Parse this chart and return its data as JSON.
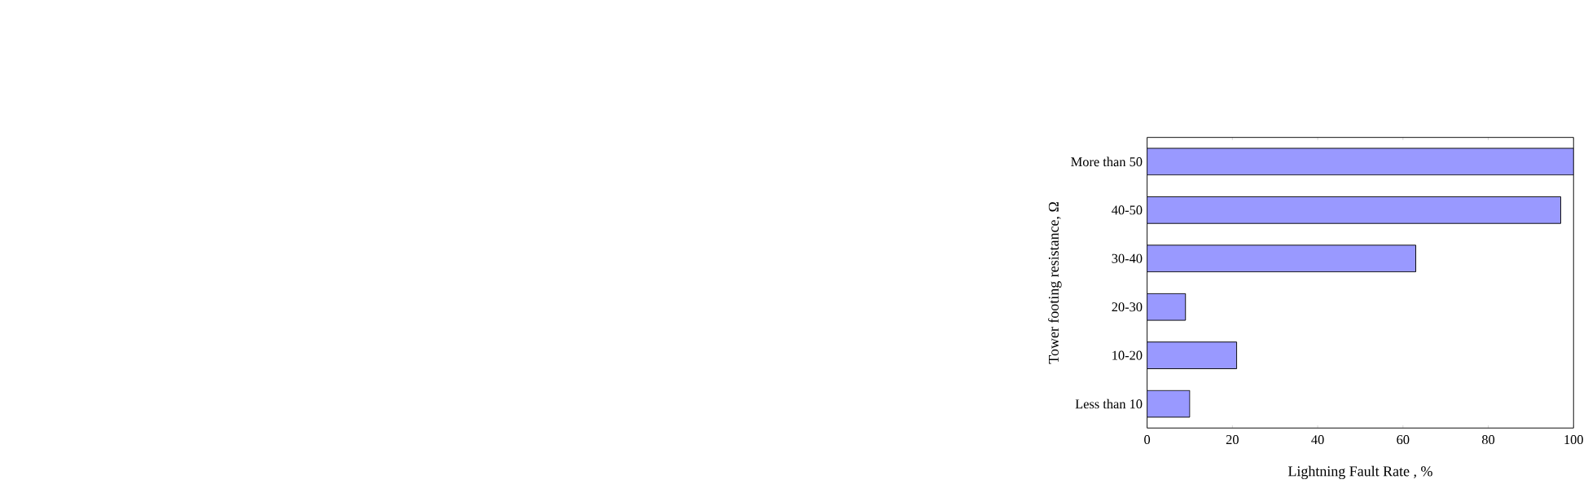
{
  "chart_data": {
    "type": "bar",
    "orientation": "horizontal",
    "xlabel": "Lightning Fault Rate  , %",
    "ylabel": "Tower footing resistance, Ω",
    "categories": [
      "More than 50",
      "40-50",
      "30-40",
      "20-30",
      "10-20",
      "Less than 10"
    ],
    "values": [
      100,
      97,
      63,
      9,
      21,
      10
    ],
    "color": "#9999ff",
    "xlim": [
      0,
      100
    ],
    "xticks": [
      0,
      20,
      40,
      60,
      80,
      100
    ]
  }
}
